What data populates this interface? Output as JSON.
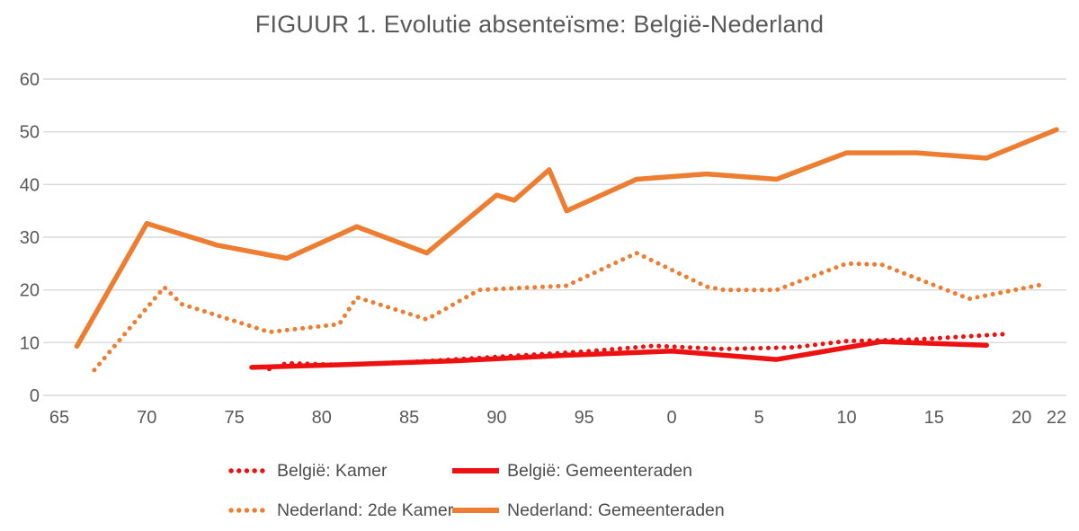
{
  "title": "FIGUUR 1. Evolutie absenteïsme: België-Nederland",
  "colors": {
    "belgie": "#ee1111",
    "nederland": "#ed7d31",
    "grid": "#d9d9d9",
    "axis_text": "#595959",
    "title_text": "#595959"
  },
  "legend": [
    {
      "label": "België: Kamer",
      "style": "dotted",
      "color_key": "belgie"
    },
    {
      "label": "België: Gemeenteraden",
      "style": "solid",
      "color_key": "belgie"
    },
    {
      "label": "Nederland: 2de Kamer",
      "style": "dotted",
      "color_key": "nederland"
    },
    {
      "label": "Nederland: Gemeenteraden",
      "style": "solid",
      "color_key": "nederland"
    }
  ],
  "chart_data": {
    "type": "line",
    "title": "FIGUUR 1. Evolutie absenteïsme: België-Nederland",
    "xlabel": "",
    "ylabel": "",
    "grid": true,
    "legend_position": "bottom",
    "x_axis": {
      "unit": "year (two-digit labels, 1965-2022)",
      "range": [
        1964,
        2023
      ],
      "tick_years": [
        1965,
        1970,
        1975,
        1980,
        1985,
        1990,
        1995,
        2000,
        2005,
        2010,
        2015,
        2020,
        2022
      ],
      "tick_labels": [
        "65",
        "70",
        "75",
        "80",
        "85",
        "90",
        "95",
        "0",
        "5",
        "10",
        "15",
        "20",
        "22"
      ]
    },
    "y_axis": {
      "range": [
        0,
        60
      ],
      "ticks": [
        0,
        10,
        20,
        30,
        40,
        50,
        60
      ]
    },
    "series": [
      {
        "name": "Nederland: Gemeenteraden",
        "style": "solid",
        "color": "#ed7d31",
        "points": [
          [
            1966,
            9.3
          ],
          [
            1970,
            32.6
          ],
          [
            1974,
            28.5
          ],
          [
            1978,
            26.0
          ],
          [
            1982,
            32.0
          ],
          [
            1986,
            27.0
          ],
          [
            1990,
            38.0
          ],
          [
            1991,
            37.0
          ],
          [
            1993,
            42.8
          ],
          [
            1994,
            35.0
          ],
          [
            1998,
            41.0
          ],
          [
            2002,
            42.0
          ],
          [
            2006,
            41.0
          ],
          [
            2010,
            46.0
          ],
          [
            2014,
            46.0
          ],
          [
            2018,
            45.0
          ],
          [
            2022,
            50.4
          ]
        ]
      },
      {
        "name": "Nederland: 2de Kamer",
        "style": "dotted",
        "color": "#ed7d31",
        "points": [
          [
            1967,
            4.8
          ],
          [
            1971,
            20.5
          ],
          [
            1972,
            17.3
          ],
          [
            1977,
            12.0
          ],
          [
            1981,
            13.5
          ],
          [
            1982,
            18.6
          ],
          [
            1986,
            14.4
          ],
          [
            1989,
            20.0
          ],
          [
            1994,
            20.8
          ],
          [
            1998,
            27.0
          ],
          [
            2002,
            20.6
          ],
          [
            2003,
            20.0
          ],
          [
            2006,
            20.0
          ],
          [
            2010,
            25.0
          ],
          [
            2012,
            24.8
          ],
          [
            2017,
            18.3
          ],
          [
            2021,
            20.9
          ]
        ]
      },
      {
        "name": "België: Gemeenteraden",
        "style": "solid",
        "color": "#ee1111",
        "points": [
          [
            1976,
            5.3
          ],
          [
            1982,
            5.9
          ],
          [
            1988,
            6.6
          ],
          [
            1994,
            7.6
          ],
          [
            2000,
            8.4
          ],
          [
            2006,
            6.8
          ],
          [
            2012,
            10.2
          ],
          [
            2018,
            9.5
          ]
        ]
      },
      {
        "name": "België: Kamer",
        "style": "dotted",
        "color": "#ee1111",
        "points": [
          [
            1977,
            5.0
          ],
          [
            1978,
            6.1
          ],
          [
            1981,
            5.8
          ],
          [
            1985,
            6.3
          ],
          [
            1987,
            6.7
          ],
          [
            1991,
            7.5
          ],
          [
            1995,
            8.3
          ],
          [
            1999,
            9.4
          ],
          [
            2003,
            8.8
          ],
          [
            2007,
            9.1
          ],
          [
            2010,
            10.3
          ],
          [
            2014,
            10.6
          ],
          [
            2019,
            11.6
          ]
        ]
      }
    ]
  }
}
